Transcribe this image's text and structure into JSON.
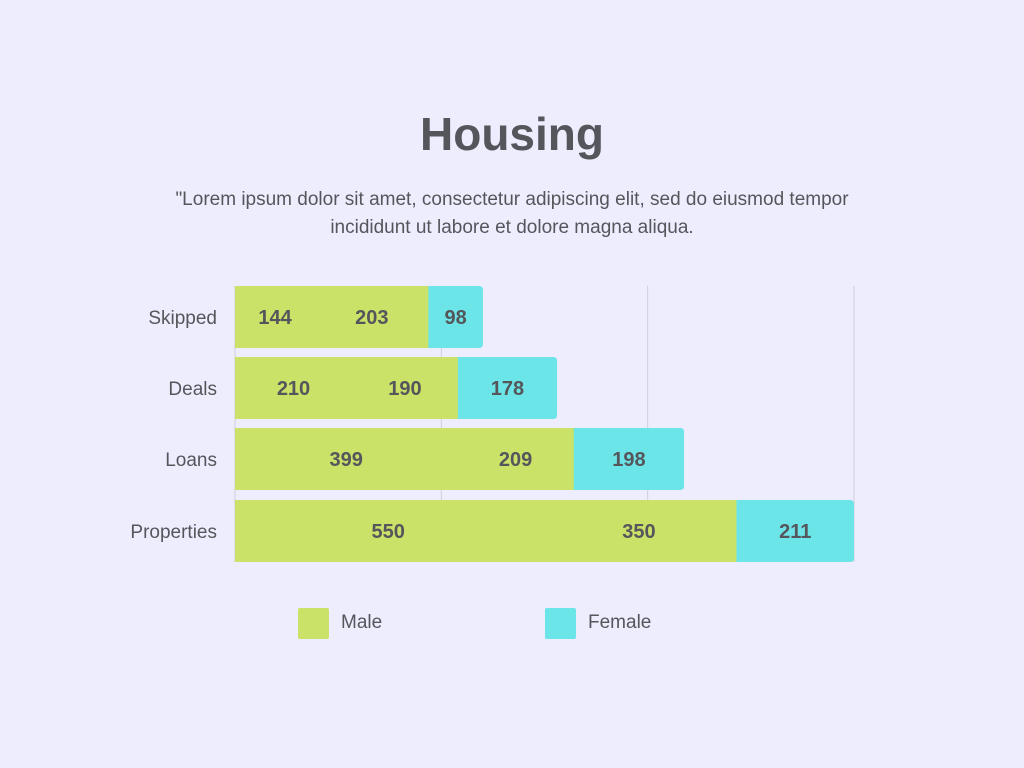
{
  "title": "Housing",
  "subtitle": "\"Lorem ipsum dolor sit amet, consectetur adipiscing elit, sed do eiusmod tempor incididunt ut labore et dolore magna aliqua.",
  "colors": {
    "background": "#eeedfe",
    "male": "#cbe268",
    "female": "#6ce5e8",
    "text": "#55565b",
    "grid": "#cfced8"
  },
  "legend": [
    {
      "name": "Male",
      "color": "#cbe268"
    },
    {
      "name": "Female",
      "color": "#6ce5e8"
    }
  ],
  "chart_data": {
    "type": "bar",
    "orientation": "horizontal",
    "stacked": true,
    "title": "Housing",
    "categories": [
      "Skipped",
      "Deals",
      "Loans",
      "Properties"
    ],
    "series": [
      {
        "name": "Male",
        "values": [
          144,
          210,
          399,
          550
        ],
        "color": "#cbe268"
      },
      {
        "name": "Male",
        "values": [
          203,
          190,
          209,
          350
        ],
        "color": "#cbe268"
      },
      {
        "name": "Female",
        "values": [
          98,
          178,
          198,
          211
        ],
        "color": "#6ce5e8"
      }
    ],
    "xlim": [
      0,
      1111
    ],
    "grid": true,
    "legend_position": "bottom"
  }
}
